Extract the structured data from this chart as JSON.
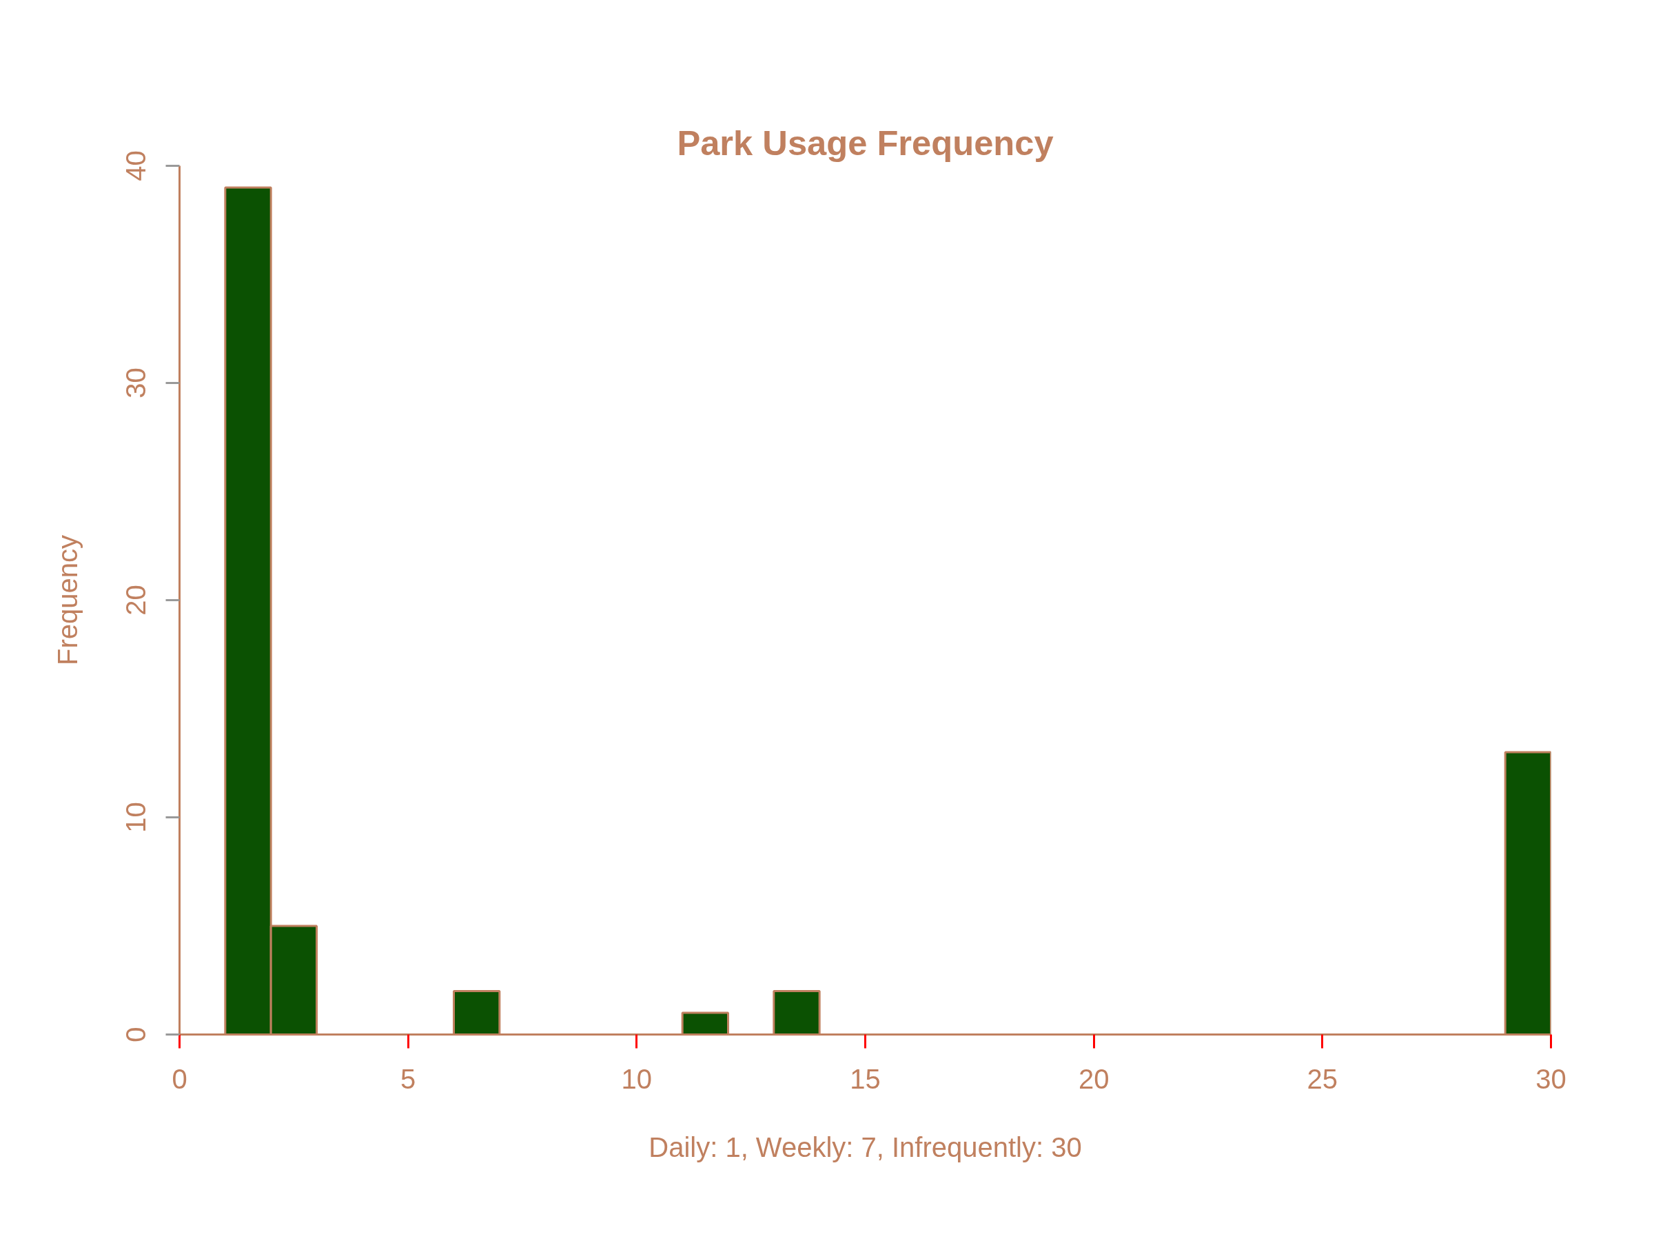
{
  "chart_data": {
    "type": "histogram",
    "title": "Park Usage Frequency",
    "xlabel": "Daily: 1, Weekly: 7, Infrequently: 30",
    "ylabel": "Frequency",
    "bins": [
      1,
      2,
      3,
      4,
      5,
      6,
      7,
      8,
      9,
      10,
      11,
      12,
      13,
      14,
      15,
      16,
      17,
      18,
      19,
      20,
      21,
      22,
      23,
      24,
      25,
      26,
      27,
      28,
      29,
      30
    ],
    "values": [
      39,
      5,
      0,
      0,
      0,
      2,
      0,
      0,
      0,
      0,
      1,
      0,
      2,
      0,
      0,
      0,
      0,
      0,
      0,
      0,
      0,
      0,
      0,
      0,
      0,
      0,
      0,
      0,
      13
    ],
    "color": "#0b5102",
    "xlim": [
      0,
      30
    ],
    "ylim": [
      0,
      40
    ],
    "xticks": [
      0,
      5,
      10,
      15,
      20,
      25,
      30
    ],
    "yticks": [
      0,
      10,
      20,
      30,
      40
    ],
    "grid": false
  }
}
